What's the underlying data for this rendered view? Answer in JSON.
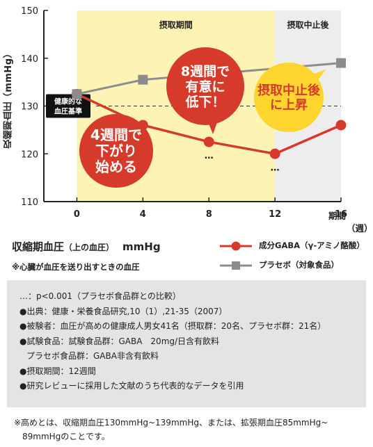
{
  "chart_data": {
    "type": "line",
    "x": [
      0,
      4,
      8,
      12,
      16
    ],
    "x_unit": "期間\n（週）",
    "ylabel": "収縮期血圧（mmHg）",
    "ylim": [
      110,
      150
    ],
    "yticks": [
      110,
      120,
      130,
      140,
      150
    ],
    "series": [
      {
        "name": "成分GABA（γ-アミノ酪酸）",
        "color": "#d63a2a",
        "marker": "circle",
        "values": [
          132.5,
          126,
          122.5,
          120,
          126
        ],
        "significance": [
          null,
          "…",
          "…",
          "…",
          null
        ]
      },
      {
        "name": "プラセボ（対象食品）",
        "color": "#8c8c8c",
        "marker": "square",
        "values": [
          132.5,
          135.5,
          null,
          null,
          139
        ]
      }
    ],
    "reference_line": {
      "value": 130,
      "label": "健康的な\n血圧基準"
    },
    "regions": [
      {
        "label": "摂取期間",
        "from": 0,
        "to": 12,
        "color": "#fdf3b4"
      },
      {
        "label": "摂取中止後",
        "from": 12,
        "to": 16,
        "color": "#ededed"
      }
    ],
    "callouts": [
      {
        "text": "4週間で\n下がり\n始める",
        "color": "#d63a2a"
      },
      {
        "text": "8週間で\n有意に\n低下！",
        "color": "#d63a2a"
      },
      {
        "text": "摂取中止後\nに上昇",
        "color": "#fed52f"
      }
    ]
  },
  "legend": {
    "title": "収縮期血圧",
    "title_sub": "（上の血圧）",
    "unit": "mmHg",
    "note": "※心臓が血圧を送り出すときの血圧",
    "gaba_label": "成分GABA（γ-アミノ酪酸）",
    "placebo_label": "プラセボ（対象食品）"
  },
  "notes": {
    "line1": "…：p<0.001（プラセボ食品群との比較）",
    "line2": "●出典：健康・栄養食品研究,10（1）,21-35（2007）",
    "line3": "●被験者：血圧が高めの健康成人男女41名（摂取群：20名、プラセボ群：21名）",
    "line4": "●試験食品：試験食品群：GABA　20mg/日含有飲料",
    "line5": "プラセボ食品群：GABA非含有飲料",
    "line6": "●摂取期間：12週間",
    "line7": "●研究レビューに採用した文献のうち代表的なデータを引用"
  },
  "footer": {
    "line1": "※高めとは、収縮期血圧130mmHg~139mmHg、または、拡張期血圧85mmHg~",
    "line2": "89mmHgのことです。"
  }
}
